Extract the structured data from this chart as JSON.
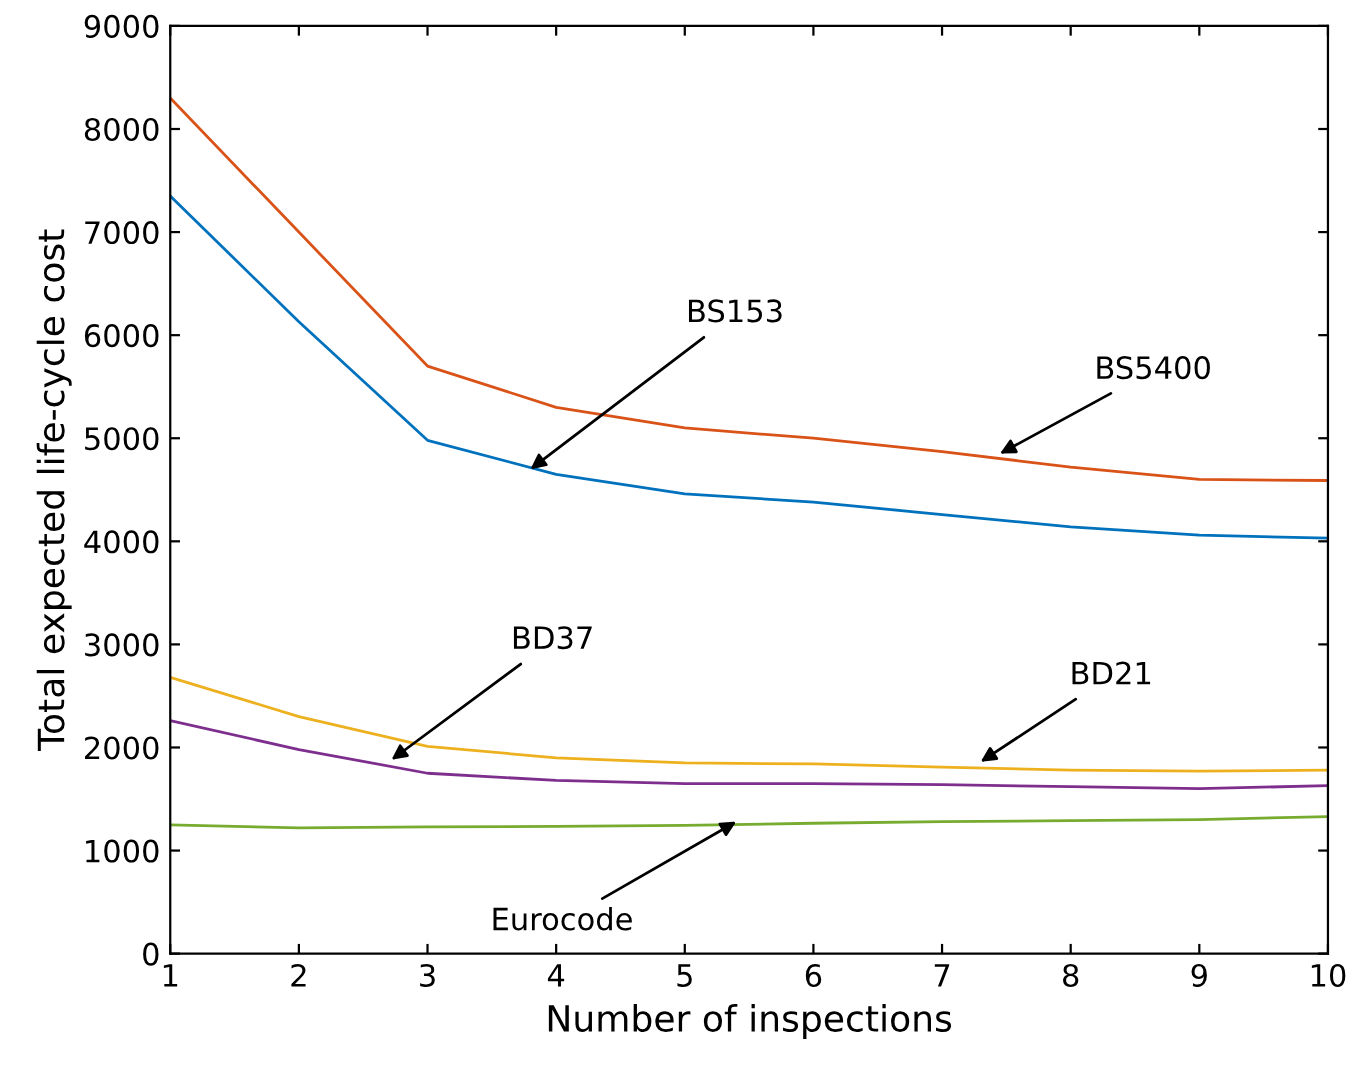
{
  "chart_data": {
    "type": "line",
    "xlabel": "Number of inspections",
    "ylabel": "Total expected life-cycle cost",
    "x": [
      1,
      2,
      3,
      4,
      5,
      6,
      7,
      8,
      9,
      10
    ],
    "series": [
      {
        "color": "#d95319",
        "values": [
          8300,
          7000,
          5700,
          5300,
          5100,
          5000,
          4870,
          4720,
          4600,
          4590
        ]
      },
      {
        "color": "#0072bd",
        "values": [
          7350,
          6130,
          4980,
          4650,
          4460,
          4380,
          4260,
          4140,
          4060,
          4030
        ]
      },
      {
        "color": "#edb120",
        "values": [
          2680,
          2300,
          2010,
          1900,
          1850,
          1840,
          1810,
          1780,
          1770,
          1780
        ]
      },
      {
        "color": "#7e2f8e",
        "values": [
          2260,
          1980,
          1750,
          1680,
          1650,
          1650,
          1640,
          1620,
          1600,
          1630
        ]
      },
      {
        "color": "#77ac30",
        "values": [
          1250,
          1220,
          1230,
          1235,
          1245,
          1265,
          1280,
          1290,
          1300,
          1330
        ]
      }
    ],
    "annotations": [
      {
        "text": "BS153",
        "x": 3.8,
        "y": 4700
      },
      {
        "text": "BS5400",
        "x": 7.45,
        "y": 4850
      },
      {
        "text": "BD37",
        "x": 2.72,
        "y": 1880
      },
      {
        "text": "BD21",
        "x": 7.3,
        "y": 1860
      },
      {
        "text": "Eurocode",
        "x": 5.4,
        "y": 1280
      }
    ],
    "xlim": [
      1,
      10
    ],
    "xticks": [
      1,
      2,
      3,
      4,
      5,
      6,
      7,
      8,
      9,
      10
    ],
    "ylim": [
      0,
      9000
    ],
    "yticks": [
      0,
      1000,
      2000,
      3000,
      4000,
      5000,
      6000,
      7000,
      8000,
      9000
    ],
    "grid": false,
    "legend": false,
    "marker": "none",
    "line_style": "solid"
  }
}
